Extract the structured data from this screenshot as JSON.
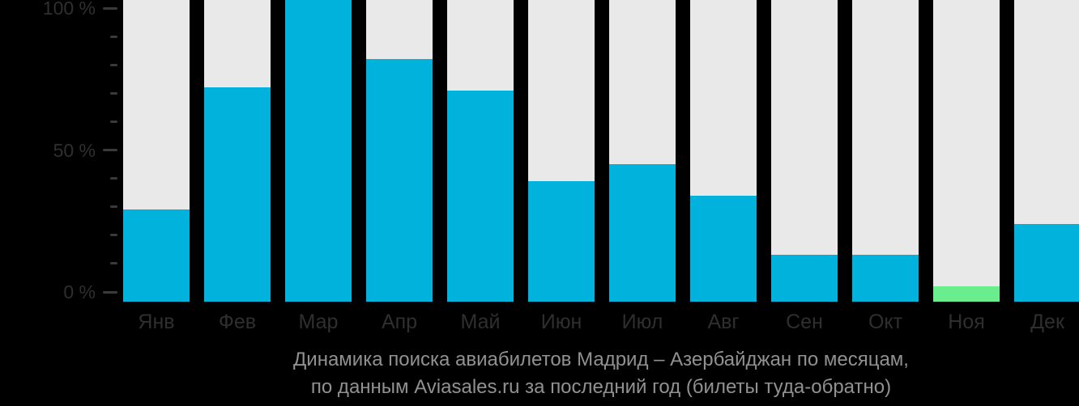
{
  "chart_data": {
    "type": "bar",
    "title_lines": [
      "Динамика поиска авиабилетов Мадрид – Азербайджан по месяцам,",
      "по данным Aviasales.ru за последний год (билеты туда-обратно)"
    ],
    "categories": [
      "Янв",
      "Фев",
      "Мар",
      "Апр",
      "Май",
      "Июн",
      "Июл",
      "Авг",
      "Сен",
      "Окт",
      "Ноя",
      "Дек"
    ],
    "values": [
      29,
      72,
      103,
      82,
      71,
      39,
      45,
      34,
      13,
      13,
      2,
      24
    ],
    "unit": "%",
    "highlight_index": 10,
    "highlight_month": "Ноя",
    "ylabel": "",
    "xlabel": "",
    "ylim": [
      0,
      100
    ],
    "grid": false,
    "legend_position": "none",
    "y_ticks": [
      {
        "value": 0,
        "label": "0 %"
      },
      {
        "value": 10
      },
      {
        "value": 20
      },
      {
        "value": 30
      },
      {
        "value": 40
      },
      {
        "value": 50,
        "label": "50 %"
      },
      {
        "value": 60
      },
      {
        "value": 70
      },
      {
        "value": 80
      },
      {
        "value": 90
      },
      {
        "value": 100,
        "label": "100 %"
      }
    ],
    "colors": {
      "bar": "#00b2dc",
      "highlight": "#69ed8d",
      "track": "#e9e9ea",
      "background": "#000000",
      "axis_label": "#2f2f2f",
      "tick": "#3a3a3a",
      "title": "#919191"
    }
  }
}
